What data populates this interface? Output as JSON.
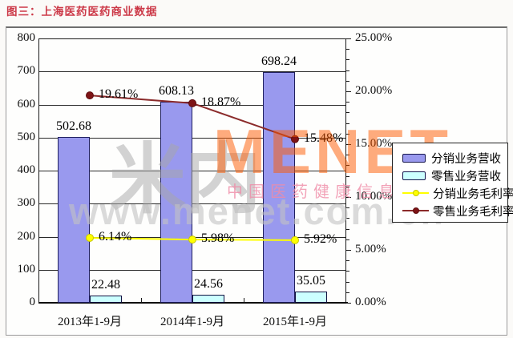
{
  "title": "图三：上海医药医药商业数据",
  "watermark": {
    "logo_cn": "米内",
    "logo_en": "MENET",
    "tagline": "中国医药健康信息第一平台",
    "url": "www.menet.com.cn"
  },
  "chart_data": {
    "type": "bar",
    "subtype": "bar-line-combo",
    "title": "上海医药医药商业数据",
    "categories": [
      "2013年1-9月",
      "2014年1-9月",
      "2015年1-9月"
    ],
    "series": [
      {
        "name": "分销业务营收",
        "type": "bar",
        "axis": "left",
        "color": "#9999ee",
        "border": "#1f1f5e",
        "values": [
          502.68,
          608.13,
          698.24
        ],
        "labels": [
          "502.68",
          "608.13",
          "698.24"
        ]
      },
      {
        "name": "零售业务营收",
        "type": "bar",
        "axis": "left",
        "color": "#ccffff",
        "border": "#101040",
        "values": [
          22.48,
          24.56,
          35.05
        ],
        "labels": [
          "22.48",
          "24.56",
          "35.05"
        ]
      },
      {
        "name": "分销业务毛利率",
        "type": "line",
        "axis": "right",
        "color": "#ffff00",
        "marker": "#ffff00",
        "marker_edge": "#c8c800",
        "values": [
          6.14,
          5.98,
          5.92
        ],
        "labels": [
          "6.14%",
          "5.98%",
          "5.92%"
        ]
      },
      {
        "name": "零售业务毛利率",
        "type": "line",
        "axis": "right",
        "color": "#8b2b2b",
        "marker": "#7e1416",
        "marker_edge": "#5e0d0f",
        "values": [
          19.61,
          18.87,
          15.48
        ],
        "labels": [
          "19.61%",
          "18.87%",
          "15.48%"
        ]
      }
    ],
    "left_axis": {
      "min": 0,
      "max": 800,
      "step": 100,
      "ticks": [
        "800",
        "700",
        "600",
        "500",
        "400",
        "300",
        "200",
        "100",
        "0"
      ]
    },
    "right_axis": {
      "min": 0,
      "max": 25,
      "step": 5,
      "minor_step": 1,
      "ticks": [
        "25.00%",
        "20.00%",
        "15.00%",
        "10.00%",
        "5.00%",
        "0.00%"
      ]
    },
    "grid": "horizontal",
    "legend_position": "right"
  }
}
